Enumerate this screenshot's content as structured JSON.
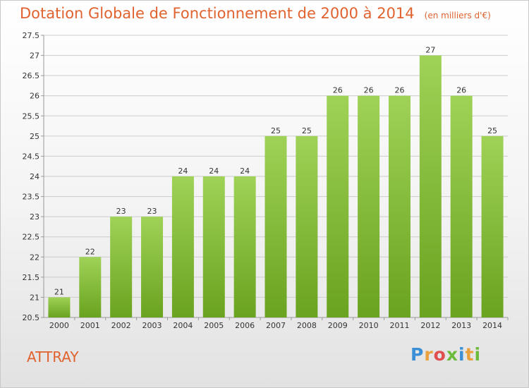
{
  "title": "Dotation Globale de Fonctionnement de 2000 à 2014",
  "subtitle": "(en milliers d'€)",
  "place": "ATTRAY",
  "logo": {
    "text": "Proxiti",
    "letters": [
      {
        "ch": "P",
        "color": "#3a8fd6"
      },
      {
        "ch": "r",
        "color": "#e8a13c"
      },
      {
        "ch": "o",
        "color": "#e04f4f"
      },
      {
        "ch": "x",
        "color": "#6dbb3c"
      },
      {
        "ch": "i",
        "color": "#3a8fd6"
      },
      {
        "ch": "t",
        "color": "#e8a13c"
      },
      {
        "ch": "i",
        "color": "#6dbb3c"
      }
    ]
  },
  "colors": {
    "bar_top": "#9fd257",
    "bar_bottom": "#6aa31f",
    "grid": "#cccccc",
    "text": "#333333",
    "title": "#e0622f"
  },
  "chart_data": {
    "type": "bar",
    "categories": [
      "2000",
      "2001",
      "2002",
      "2003",
      "2004",
      "2005",
      "2006",
      "2007",
      "2008",
      "2009",
      "2010",
      "2011",
      "2012",
      "2013",
      "2014"
    ],
    "values": [
      21,
      22,
      23,
      23,
      24,
      24,
      24,
      25,
      25,
      26,
      26,
      26,
      27,
      26,
      25
    ],
    "data_labels": [
      "21",
      "22",
      "23",
      "23",
      "24",
      "24",
      "24",
      "25",
      "25",
      "26",
      "26",
      "26",
      "27",
      "26",
      "25"
    ],
    "ylim": [
      20.5,
      27.5
    ],
    "yticks": [
      20.5,
      21,
      21.5,
      22,
      22.5,
      23,
      23.5,
      24,
      24.5,
      25,
      25.5,
      26,
      26.5,
      27,
      27.5
    ],
    "ytick_labels": [
      "20.5",
      "21",
      "21.5",
      "22",
      "22.5",
      "23",
      "23.5",
      "24",
      "24.5",
      "25",
      "25.5",
      "26",
      "26.5",
      "27",
      "27.5"
    ],
    "grid": true,
    "xlabel": "",
    "ylabel": ""
  }
}
